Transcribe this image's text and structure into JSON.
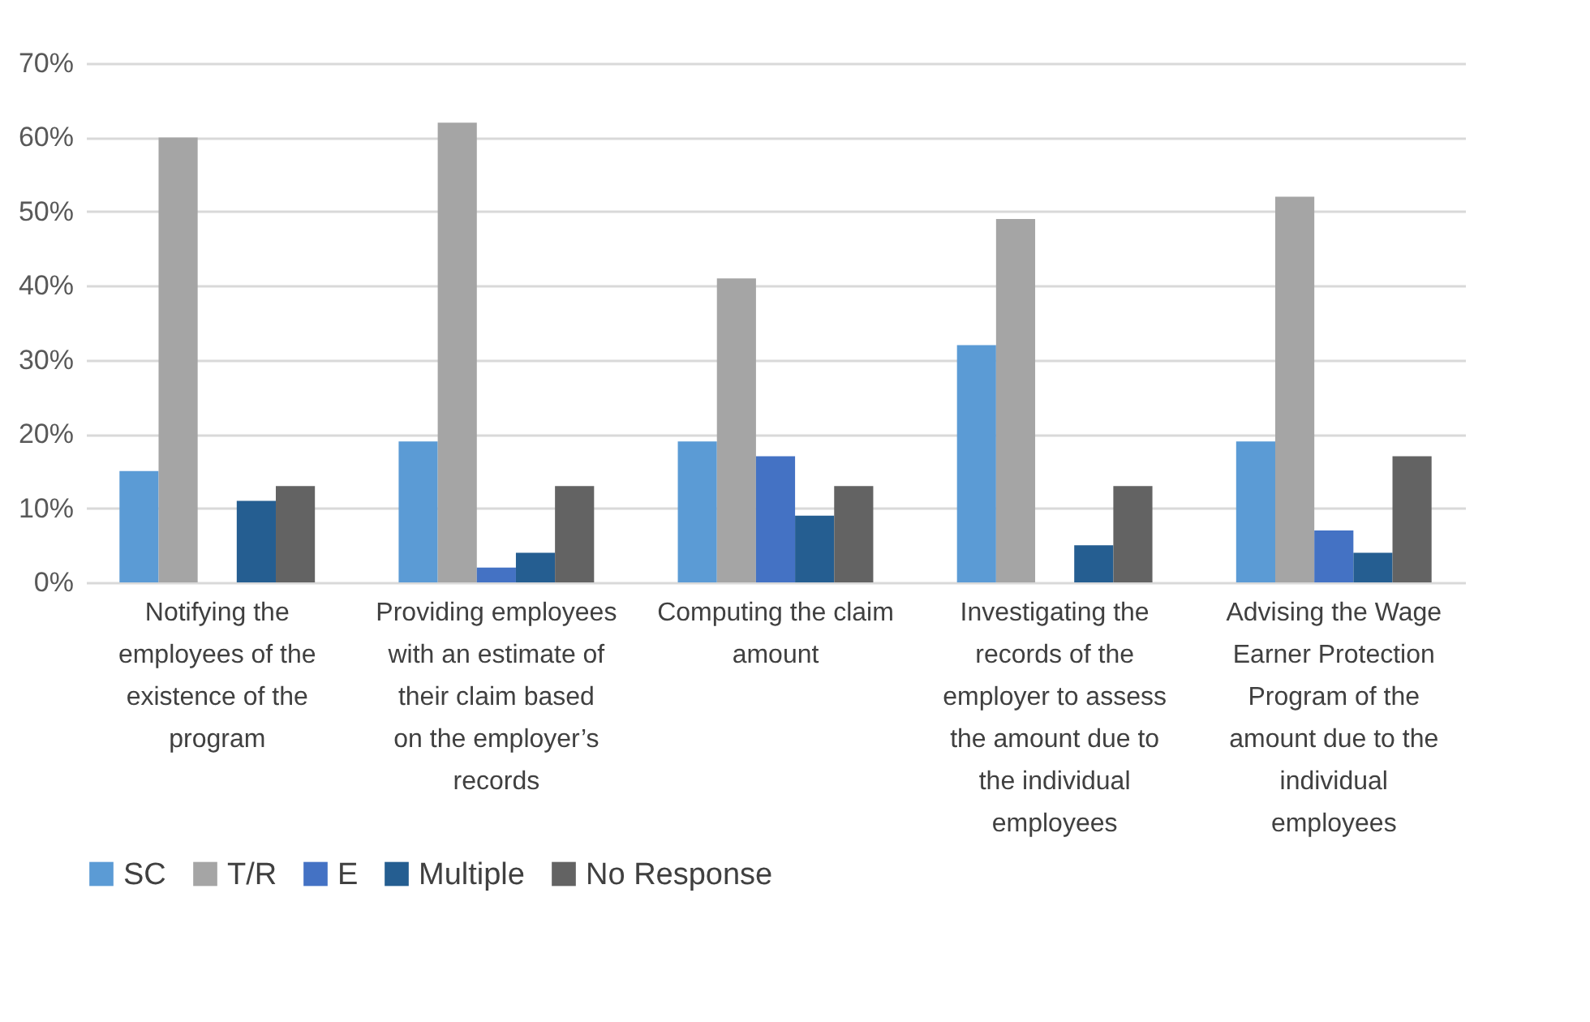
{
  "chart_data": {
    "type": "bar",
    "categories": [
      "Notifying the employees of the existence of the program",
      "Providing employees with an estimate of their claim based on the employer’s records",
      "Computing the claim amount",
      "Investigating the records of the employer to assess the amount due to the individual employees",
      "Advising the Wage Earner Protection Program of the amount due to the individual employees"
    ],
    "series": [
      {
        "name": "SC",
        "color": "#5b9bd5",
        "values": [
          15,
          19,
          19,
          32,
          19
        ]
      },
      {
        "name": "T/R",
        "color": "#a5a5a5",
        "values": [
          60,
          62,
          41,
          49,
          52
        ]
      },
      {
        "name": "E",
        "color": "#4472c4",
        "values": [
          0,
          2,
          17,
          0,
          7
        ]
      },
      {
        "name": "Multiple",
        "color": "#255e91",
        "values": [
          11,
          4,
          9,
          5,
          4
        ]
      },
      {
        "name": "No Response",
        "color": "#636363",
        "values": [
          13,
          13,
          13,
          13,
          17
        ]
      }
    ],
    "ylim": [
      0,
      70
    ],
    "yticks": [
      {
        "value": 0,
        "label": "0%"
      },
      {
        "value": 10,
        "label": "10%"
      },
      {
        "value": 20,
        "label": "20%"
      },
      {
        "value": 30,
        "label": "30%"
      },
      {
        "value": 40,
        "label": "40%"
      },
      {
        "value": 50,
        "label": "50%"
      },
      {
        "value": 60,
        "label": "60%"
      },
      {
        "value": 70,
        "label": "70%"
      }
    ],
    "grid": "y",
    "legend": "bottom"
  }
}
